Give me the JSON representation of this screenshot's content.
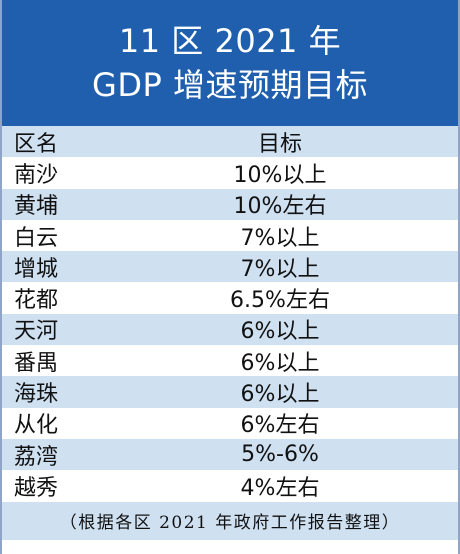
{
  "header": {
    "title_line1": "11 区 2021 年",
    "title_line2": "GDP 增速预期目标"
  },
  "table": {
    "col_district": "区名",
    "col_target": "目标",
    "rows": [
      {
        "district": "南沙",
        "target": "10%以上"
      },
      {
        "district": "黄埔",
        "target": "10%左右"
      },
      {
        "district": "白云",
        "target": "7%以上"
      },
      {
        "district": "增城",
        "target": "7%以上"
      },
      {
        "district": "花都",
        "target": "6.5%左右"
      },
      {
        "district": "天河",
        "target": "6%以上"
      },
      {
        "district": "番禺",
        "target": "6%以上"
      },
      {
        "district": "海珠",
        "target": "6%以上"
      },
      {
        "district": "从化",
        "target": "6%左右"
      },
      {
        "district": "荔湾",
        "target": "5%-6%"
      },
      {
        "district": "越秀",
        "target": "4%左右"
      }
    ]
  },
  "footer": {
    "note": "（根据各区 2021 年政府工作报告整理）"
  },
  "colors": {
    "header_bg": "#1f5fae",
    "stripe_bg": "#cfe0f1",
    "text": "#111111"
  }
}
